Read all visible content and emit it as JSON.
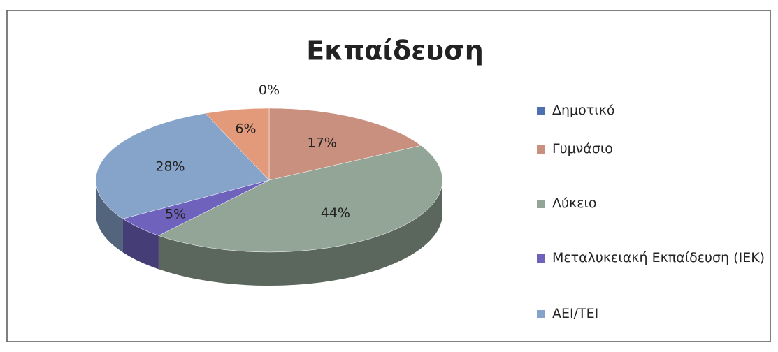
{
  "chart_data": {
    "type": "pie3d",
    "title": "Εκπαίδευση",
    "categories": [
      "Δημοτικό",
      "Γυμνάσιο",
      "Λύκειο",
      "Μεταλυκειακή Εκπαίδευση (ΙΕΚ)",
      "ΑΕΙ/ΤΕΙ",
      null
    ],
    "values": [
      0,
      17,
      44,
      5,
      28,
      6
    ],
    "value_labels": [
      "0%",
      "17%",
      "44%",
      "5%",
      "28%",
      "6%"
    ],
    "colors": [
      "#4f6fb3",
      "#c9907f",
      "#92a596",
      "#6f62bd",
      "#86a3c9",
      "#e39a7a"
    ]
  }
}
